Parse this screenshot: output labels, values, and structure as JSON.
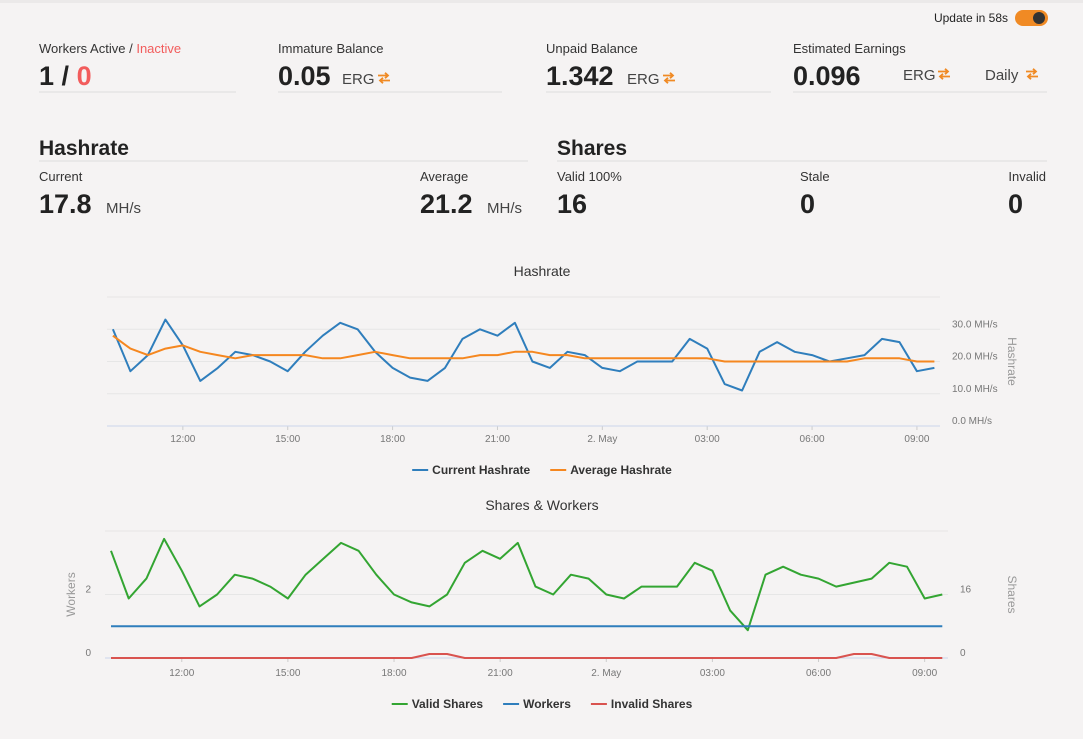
{
  "header": {
    "update": "Update in 58s"
  },
  "stats": {
    "workers": {
      "label": "Workers Active",
      "separator": "/",
      "inactive_label": "Inactive",
      "active": 1,
      "inactive": 0
    },
    "immature": {
      "label": "Immature Balance",
      "value": 0.05,
      "unit": "ERG"
    },
    "unpaid": {
      "label": "Unpaid Balance",
      "value": 1.342,
      "unit": "ERG"
    },
    "estimated": {
      "label": "Estimated Earnings",
      "value": 0.096,
      "unit": "ERG",
      "period": "Daily"
    }
  },
  "hashrate": {
    "title": "Hashrate",
    "current": {
      "label": "Current",
      "value": 17.8,
      "unit": "MH/s"
    },
    "average": {
      "label": "Average",
      "value": 21.2,
      "unit": "MH/s"
    }
  },
  "shares": {
    "title": "Shares",
    "valid": {
      "label": "Valid 100%",
      "value": 16
    },
    "stale": {
      "label": "Stale",
      "value": 0
    },
    "invalid": {
      "label": "Invalid",
      "value": 0
    }
  },
  "chart_data": [
    {
      "type": "line",
      "title": "Hashrate",
      "y2label": "Hashrate",
      "legend": "bottom",
      "x": [
        10,
        10.5,
        11,
        11.5,
        12,
        12.5,
        13,
        13.5,
        14,
        14.5,
        15,
        15.5,
        16,
        16.5,
        17,
        17.5,
        18,
        18.5,
        19,
        19.5,
        20,
        20.5,
        21,
        21.5,
        22,
        22.5,
        23,
        23.5,
        24,
        24.5,
        25,
        25.5,
        26,
        26.5,
        27,
        27.5,
        28,
        28.5,
        29,
        29.5,
        30,
        30.5,
        31,
        31.5,
        32,
        32.5,
        33,
        33.5
      ],
      "xlim": [
        9.83,
        33.66
      ],
      "xticks": [
        {
          "value": 12,
          "label": "12:00"
        },
        {
          "value": 15,
          "label": "15:00"
        },
        {
          "value": 18,
          "label": "18:00"
        },
        {
          "value": 21,
          "label": "21:00"
        },
        {
          "value": 24,
          "label": "2. May"
        },
        {
          "value": 27,
          "label": "03:00"
        },
        {
          "value": 30,
          "label": "06:00"
        },
        {
          "value": 33,
          "label": "09:00"
        }
      ],
      "y2lim": [
        0,
        40
      ],
      "y2ticks": [
        {
          "value": 0,
          "label": "0.0 MH/s"
        },
        {
          "value": 10,
          "label": "10.0 MH/s"
        },
        {
          "value": 20,
          "label": "20.0 MH/s"
        },
        {
          "value": 30,
          "label": "30.0 MH/s"
        }
      ],
      "grid": true,
      "series": [
        {
          "name": "Current Hashrate",
          "color": "#2f7ebc",
          "axis": "y2",
          "values": [
            30,
            17,
            22,
            33,
            25,
            14,
            18,
            23,
            22,
            20,
            17,
            23,
            28,
            32,
            30,
            23,
            18,
            15,
            14,
            18,
            27,
            30,
            28,
            32,
            20,
            18,
            23,
            22,
            18,
            17,
            20,
            20,
            20,
            27,
            24,
            13,
            11,
            23,
            26,
            23,
            22,
            20,
            21,
            22,
            27,
            26,
            17,
            18
          ]
        },
        {
          "name": "Average Hashrate",
          "color": "#f5871f",
          "axis": "y2",
          "values": [
            28,
            24,
            22,
            24,
            25,
            23,
            22,
            21,
            22,
            22,
            22,
            22,
            21,
            21,
            22,
            23,
            22,
            21,
            21,
            21,
            21,
            22,
            22,
            23,
            23,
            22,
            22,
            21,
            21,
            21,
            21,
            21,
            21,
            21,
            21,
            20,
            20,
            20,
            20,
            20,
            20,
            20,
            20,
            21,
            21,
            21,
            20,
            20
          ]
        }
      ]
    },
    {
      "type": "line",
      "title": "Shares & Workers",
      "ylabel": "Workers",
      "y2label": "Shares",
      "legend": "bottom",
      "x": [
        10,
        10.5,
        11,
        11.5,
        12,
        12.5,
        13,
        13.5,
        14,
        14.5,
        15,
        15.5,
        16,
        16.5,
        17,
        17.5,
        18,
        18.5,
        19,
        19.5,
        20,
        20.5,
        21,
        21.5,
        22,
        22.5,
        23,
        23.5,
        24,
        24.5,
        25,
        25.5,
        26,
        26.5,
        27,
        27.5,
        28,
        28.5,
        29,
        29.5,
        30,
        30.5,
        31,
        31.5,
        32,
        32.5,
        33,
        33.5
      ],
      "xlim": [
        9.83,
        33.66
      ],
      "xticks": [
        {
          "value": 12,
          "label": "12:00"
        },
        {
          "value": 15,
          "label": "15:00"
        },
        {
          "value": 18,
          "label": "18:00"
        },
        {
          "value": 21,
          "label": "21:00"
        },
        {
          "value": 24,
          "label": "2. May"
        },
        {
          "value": 27,
          "label": "03:00"
        },
        {
          "value": 30,
          "label": "06:00"
        },
        {
          "value": 33,
          "label": "09:00"
        }
      ],
      "ylim": [
        0,
        4
      ],
      "yticks": [
        0,
        2
      ],
      "y2lim": [
        0,
        32
      ],
      "y2ticks": [
        0,
        16
      ],
      "grid": true,
      "series": [
        {
          "name": "Valid Shares",
          "color": "#33a532",
          "axis": "y2",
          "values": [
            27,
            15,
            20,
            30,
            22,
            13,
            16,
            21,
            20,
            18,
            15,
            21,
            25,
            29,
            27,
            21,
            16,
            14,
            13,
            16,
            24,
            27,
            25,
            29,
            18,
            16,
            21,
            20,
            16,
            15,
            18,
            18,
            18,
            24,
            22,
            12,
            7,
            21,
            23,
            21,
            20,
            18,
            19,
            20,
            24,
            23,
            15,
            16
          ]
        },
        {
          "name": "Workers",
          "color": "#2f7ebc",
          "values": [
            1,
            1,
            1,
            1,
            1,
            1,
            1,
            1,
            1,
            1,
            1,
            1,
            1,
            1,
            1,
            1,
            1,
            1,
            1,
            1,
            1,
            1,
            1,
            1,
            1,
            1,
            1,
            1,
            1,
            1,
            1,
            1,
            1,
            1,
            1,
            1,
            1,
            1,
            1,
            1,
            1,
            1,
            1,
            1,
            1,
            1,
            1,
            1
          ]
        },
        {
          "name": "Invalid Shares",
          "color": "#d9534f",
          "axis": "y2",
          "values": [
            0,
            0,
            0,
            0,
            0,
            0,
            0,
            0,
            0,
            0,
            0,
            0,
            0,
            0,
            0,
            0,
            0,
            0,
            1,
            1,
            0,
            0,
            0,
            0,
            0,
            0,
            0,
            0,
            0,
            0,
            0,
            0,
            0,
            0,
            0,
            0,
            0,
            0,
            0,
            0,
            0,
            0,
            1,
            1,
            0,
            0,
            0,
            0
          ]
        }
      ]
    }
  ]
}
